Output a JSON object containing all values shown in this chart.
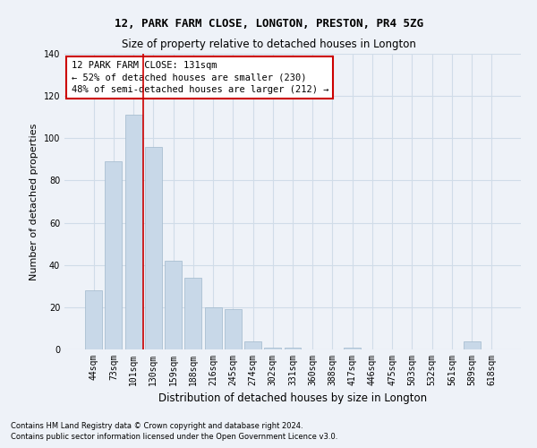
{
  "title": "12, PARK FARM CLOSE, LONGTON, PRESTON, PR4 5ZG",
  "subtitle": "Size of property relative to detached houses in Longton",
  "xlabel": "Distribution of detached houses by size in Longton",
  "ylabel": "Number of detached properties",
  "categories": [
    "44sqm",
    "73sqm",
    "101sqm",
    "130sqm",
    "159sqm",
    "188sqm",
    "216sqm",
    "245sqm",
    "274sqm",
    "302sqm",
    "331sqm",
    "360sqm",
    "388sqm",
    "417sqm",
    "446sqm",
    "475sqm",
    "503sqm",
    "532sqm",
    "561sqm",
    "589sqm",
    "618sqm"
  ],
  "values": [
    28,
    89,
    111,
    96,
    42,
    34,
    20,
    19,
    4,
    1,
    1,
    0,
    0,
    1,
    0,
    0,
    0,
    0,
    0,
    4,
    0
  ],
  "bar_color": "#c8d8e8",
  "bar_edge_color": "#a0b8cc",
  "grid_color": "#d0dce8",
  "background_color": "#eef2f8",
  "vline_x_index": 3,
  "vline_color": "#cc0000",
  "annotation_text": "12 PARK FARM CLOSE: 131sqm\n← 52% of detached houses are smaller (230)\n48% of semi-detached houses are larger (212) →",
  "annotation_box_color": "#ffffff",
  "annotation_box_edge": "#cc0000",
  "ylim": [
    0,
    140
  ],
  "yticks": [
    0,
    20,
    40,
    60,
    80,
    100,
    120,
    140
  ],
  "footnote1": "Contains HM Land Registry data © Crown copyright and database right 2024.",
  "footnote2": "Contains public sector information licensed under the Open Government Licence v3.0.",
  "title_fontsize": 9,
  "subtitle_fontsize": 8.5,
  "ylabel_fontsize": 8,
  "xlabel_fontsize": 8.5,
  "tick_fontsize": 7,
  "footnote_fontsize": 6,
  "annot_fontsize": 7.5
}
